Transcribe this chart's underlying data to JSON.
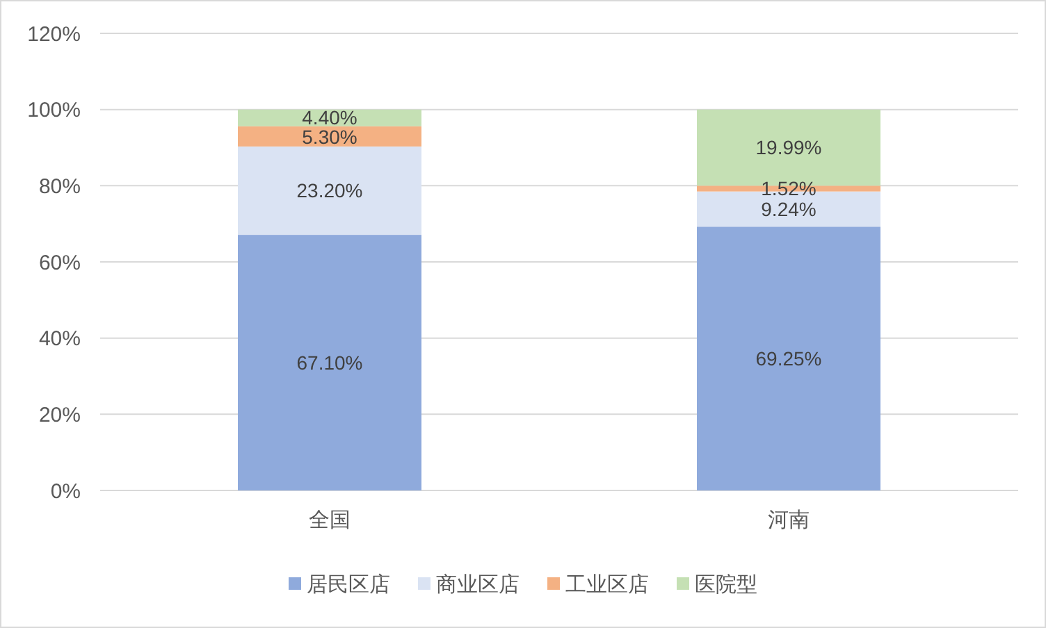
{
  "chart_data": {
    "type": "bar",
    "stacked": true,
    "categories": [
      "全国",
      "河南"
    ],
    "series": [
      {
        "name": "居民区店",
        "color": "#8faadc",
        "values": [
          67.1,
          69.25
        ],
        "value_labels": [
          "67.10%",
          "69.25%"
        ]
      },
      {
        "name": "商业区店",
        "color": "#dae3f3",
        "values": [
          23.2,
          9.24
        ],
        "value_labels": [
          "23.20%",
          "9.24%"
        ]
      },
      {
        "name": "工业区店",
        "color": "#f4b183",
        "values": [
          5.3,
          1.52
        ],
        "value_labels": [
          "5.30%",
          "1.52%"
        ]
      },
      {
        "name": "医院型",
        "color": "#c5e0b4",
        "values": [
          4.4,
          19.99
        ],
        "value_labels": [
          "4.40%",
          "19.99%"
        ]
      }
    ],
    "ylim": [
      0,
      120
    ],
    "yticks": [
      {
        "value": 0,
        "label": "0%"
      },
      {
        "value": 20,
        "label": "20%"
      },
      {
        "value": 40,
        "label": "40%"
      },
      {
        "value": 60,
        "label": "60%"
      },
      {
        "value": 80,
        "label": "80%"
      },
      {
        "value": 100,
        "label": "100%"
      },
      {
        "value": 120,
        "label": "120%"
      }
    ],
    "grid": "y",
    "legend": "bottom"
  }
}
